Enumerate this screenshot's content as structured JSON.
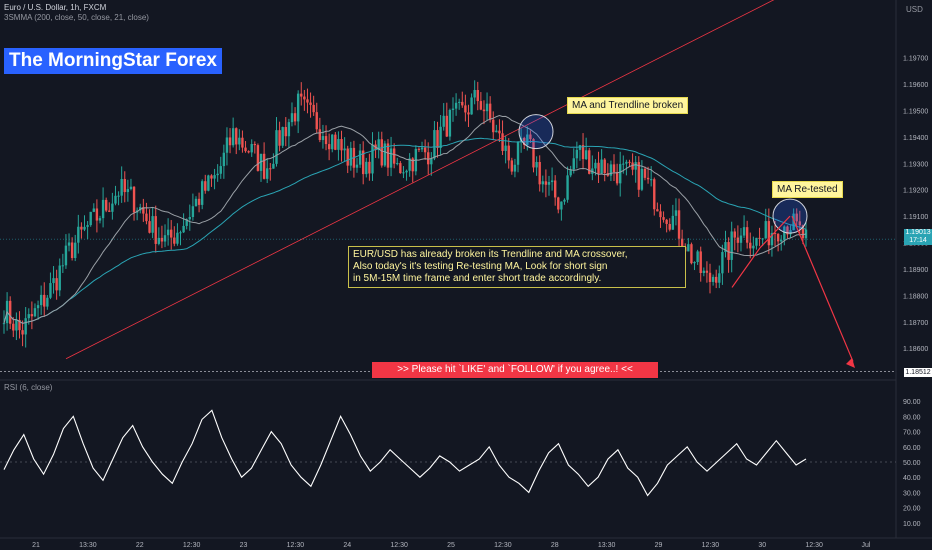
{
  "header": {
    "symbol_line": "Euro / U.S. Dollar, 1h, FXCM",
    "ma_line": "3SMMA (200, close, 50, close, 21, close)",
    "currency": "USD",
    "rsi_label": "RSI (6, close)"
  },
  "brand": {
    "text": "The MorningStar Forex"
  },
  "annotations": {
    "ma_trendline": "MA and Trendline broken",
    "ma_retested": "MA Re-tested",
    "note_lines": [
      "EUR/USD has already broken its Trendline and MA crossover,",
      "Also today's it's testing Re-testing MA, Look for short sign",
      "in 5M-15M time frame and enter short trade accordingly."
    ],
    "banner": ">>     Please hit `LIKE' and `FOLLOW' if you agree..!     <<"
  },
  "price_tags": {
    "current": "1.19013",
    "countdown": "17:14",
    "level": "1.18512"
  },
  "colors": {
    "up": "#26a69a",
    "down": "#ef5350",
    "rsi": "#ffffff",
    "trendline": "#f23645",
    "ma_long": "#2aa4b4",
    "ma_mid": "#9aa0a6",
    "arrow": "#f23645",
    "brand_bg": "#2962ff"
  },
  "chart_data": {
    "type": "candlestick",
    "y_axis_ticks": [
      "1.19700",
      "1.19600",
      "1.19500",
      "1.19400",
      "1.19300",
      "1.19200",
      "1.19100",
      "1.19000",
      "1.18900",
      "1.18800",
      "1.18700",
      "1.18600"
    ],
    "ylim": [
      1.1851,
      1.1985
    ],
    "x_axis_ticks": [
      "21",
      "13:30",
      "22",
      "12:30",
      "23",
      "12:30",
      "24",
      "12:30",
      "25",
      "12:30",
      "28",
      "13:30",
      "29",
      "12:30",
      "30",
      "12:30",
      "Jul"
    ],
    "ohlc_anchor_closes": [
      1.1875,
      1.1866,
      1.1874,
      1.1884,
      1.1897,
      1.1905,
      1.1912,
      1.192,
      1.1916,
      1.1906,
      1.19,
      1.1908,
      1.1918,
      1.1925,
      1.1941,
      1.1935,
      1.1928,
      1.1942,
      1.1952,
      1.1946,
      1.194,
      1.1932,
      1.193,
      1.1935,
      1.1928,
      1.1932,
      1.1935,
      1.1945,
      1.1949,
      1.1955,
      1.1942,
      1.193,
      1.1937,
      1.1922,
      1.1915,
      1.1935,
      1.193,
      1.1928,
      1.1926,
      1.1925,
      1.1915,
      1.1908,
      1.1895,
      1.1885,
      1.1894,
      1.1906,
      1.19,
      1.1905,
      1.1908,
      1.1901
    ],
    "rsi": {
      "ticks": [
        "90.00",
        "80.00",
        "70.00",
        "60.00",
        "50.00",
        "40.00",
        "30.00",
        "20.00",
        "10.00"
      ],
      "ylim": [
        4,
        96
      ],
      "mid_line": 50,
      "values": [
        45,
        58,
        68,
        52,
        42,
        55,
        72,
        80,
        62,
        46,
        38,
        52,
        66,
        74,
        60,
        50,
        42,
        36,
        50,
        62,
        78,
        84,
        66,
        52,
        40,
        46,
        58,
        70,
        62,
        48,
        40,
        34,
        48,
        64,
        80,
        68,
        54,
        44,
        50,
        58,
        52,
        46,
        40,
        46,
        54,
        50,
        44,
        48,
        52,
        60,
        48,
        40,
        36,
        30,
        44,
        56,
        62,
        48,
        42,
        34,
        40,
        52,
        58,
        46,
        40,
        28,
        36,
        48,
        54,
        60,
        50,
        44,
        50,
        56,
        62,
        52,
        48,
        56,
        64,
        56,
        48,
        52
      ]
    },
    "moving_averages": [
      {
        "period": 200,
        "color": "#2aa4b4"
      },
      {
        "period": 50,
        "color": "#9aa0a6"
      },
      {
        "period": 21,
        "color": "#7e57c2"
      }
    ]
  }
}
